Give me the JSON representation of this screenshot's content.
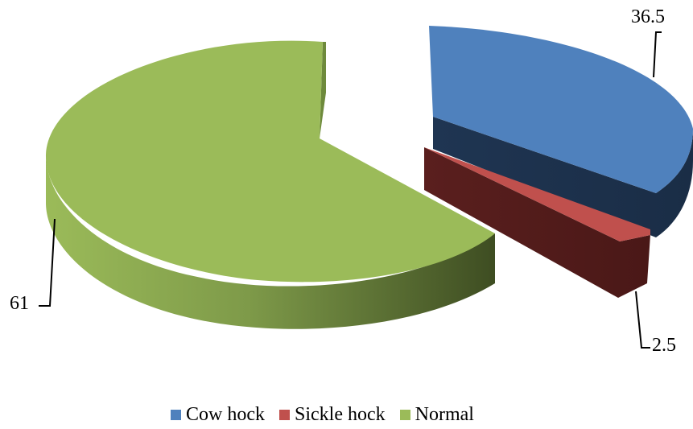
{
  "chart_data": {
    "type": "pie",
    "categories": [
      "Cow hock",
      "Sickle hock",
      "Normal"
    ],
    "values": [
      36.5,
      2.5,
      61
    ],
    "data_labels": [
      "36.5",
      "2.5",
      "61"
    ],
    "colors": [
      "#4F81BD",
      "#C0504D",
      "#9BBB59"
    ],
    "legend_position": "bottom",
    "style": "3d-exploded"
  }
}
